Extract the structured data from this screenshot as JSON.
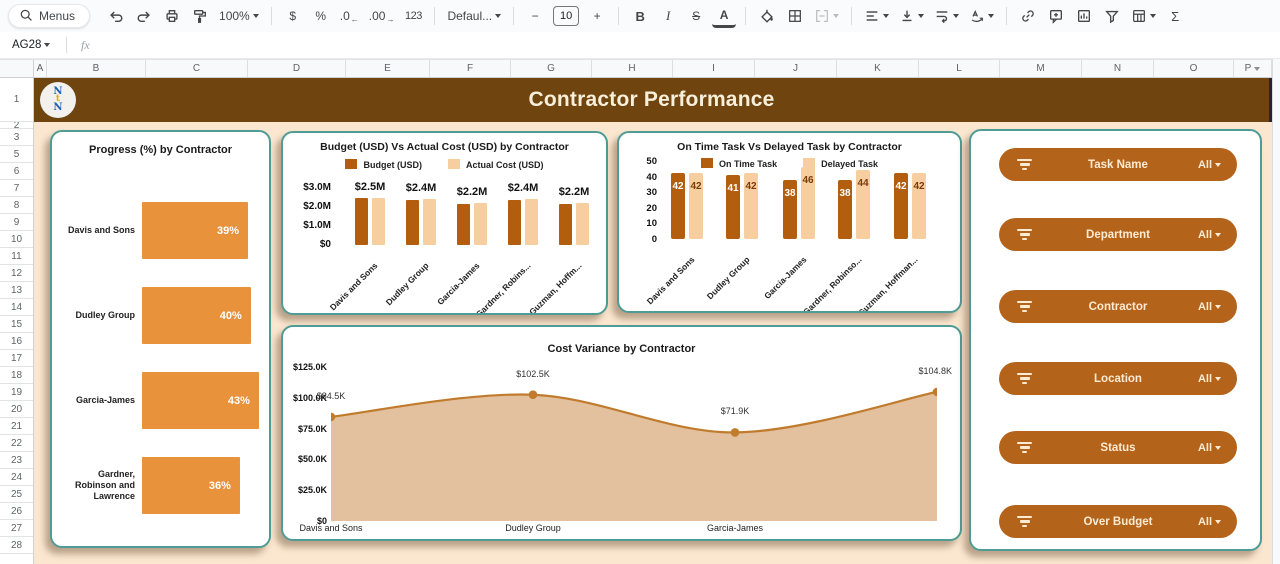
{
  "toolbar": {
    "menus": "Menus",
    "zoom_value": "100%",
    "currency": "$",
    "percent": "%",
    "dec_decrease": ".0",
    "dec_decrease_arrow": "←",
    "dec_increase": ".00",
    "dec_increase_arrow": "→",
    "more_formats": "123",
    "font_name": "Defaul...",
    "font_size": "10",
    "minus": "−",
    "plus": "+",
    "bold": "B",
    "italic": "I",
    "strike": "S",
    "text_color": "A",
    "sigma": "Σ"
  },
  "formula_bar": {
    "cell_ref": "AG28",
    "fx": "fx"
  },
  "grid": {
    "columns": [
      "A",
      "B",
      "C",
      "D",
      "E",
      "F",
      "G",
      "H",
      "I",
      "J",
      "K",
      "L",
      "M",
      "N",
      "O",
      "P"
    ],
    "rows": [
      "1",
      "2",
      "3",
      "5",
      "6",
      "7",
      "8",
      "9",
      "10",
      "11",
      "12",
      "13",
      "14",
      "15",
      "16",
      "17",
      "18",
      "19",
      "20",
      "21",
      "22",
      "23",
      "24",
      "25",
      "26",
      "27",
      "28"
    ]
  },
  "dashboard": {
    "title": "Contractor Performance",
    "logo": {
      "line1": "N",
      "line2": "t",
      "line3": "N"
    }
  },
  "colors": {
    "banner": "#6F440F",
    "dashboard_bg": "#FBE7D0",
    "card_border": "#4E9C95",
    "bar_orange": "#E8923C",
    "series_dark": "#B35E0F",
    "series_light": "#F6CE9F",
    "area_fill": "#E3C19E",
    "line": "#C07B2D",
    "button": "#B4631B",
    "banner_text": "#F7EFD9",
    "delayed_label": "#7a3c08"
  },
  "chart_data": [
    {
      "type": "bar",
      "orientation": "horizontal",
      "title": "Progress (%) by Contractor",
      "categories": [
        "Davis and Sons",
        "Dudley Group",
        "Garcia-James",
        "Gardner,\nRobinson and\nLawrence"
      ],
      "values": [
        39,
        40,
        43,
        36
      ],
      "value_labels": [
        "39%",
        "40%",
        "43%",
        "36%"
      ],
      "xlim": [
        0,
        45
      ],
      "grid": false
    },
    {
      "type": "bar",
      "title": "Budget (USD) Vs Actual Cost (USD) by Contractor",
      "categories": [
        "Davis and Sons",
        "Dudley Group",
        "Garcia-James",
        "Gardner, Robins...",
        "Guzman, Hoffm..."
      ],
      "series": [
        {
          "name": "Budget (USD)",
          "values": [
            2.45,
            2.35,
            2.15,
            2.35,
            2.15
          ]
        },
        {
          "name": "Actual Cost (USD)",
          "values": [
            2.5,
            2.4,
            2.2,
            2.4,
            2.2
          ]
        }
      ],
      "group_labels": [
        "$2.5M",
        "$2.4M",
        "$2.2M",
        "$2.4M",
        "$2.2M"
      ],
      "yticks": [
        "$3.0M",
        "$2.0M",
        "$1.0M",
        "$0"
      ],
      "ylim": [
        0,
        3
      ],
      "legend_position": "top",
      "grid": false
    },
    {
      "type": "bar",
      "title": "On Time Task Vs Delayed Task by Contractor",
      "categories": [
        "Davis and Sons",
        "Dudley Group",
        "Garcia-James",
        "Gardner, Robinso...",
        "Guzman, Hoffman..."
      ],
      "series": [
        {
          "name": "On Time Task",
          "values": [
            42,
            41,
            38,
            38,
            42
          ]
        },
        {
          "name": "Delayed Task",
          "values": [
            42,
            42,
            46,
            44,
            42
          ]
        }
      ],
      "yticks": [
        "50",
        "40",
        "30",
        "20",
        "10",
        "0"
      ],
      "ylim": [
        0,
        50
      ],
      "legend_position": "top",
      "grid": false
    },
    {
      "type": "area",
      "title": "Cost Variance by Contractor",
      "categories": [
        "Davis and Sons",
        "Dudley Group",
        "Garcia-James",
        ""
      ],
      "values": [
        84.5,
        102.5,
        71.9,
        104.8
      ],
      "value_labels": [
        "$84.5K",
        "$102.5K",
        "$71.9K",
        "$104.8K"
      ],
      "yticks": [
        "$125.0K",
        "$100.0K",
        "$75.0K",
        "$50.0K",
        "$25.0K",
        "$0"
      ],
      "ylim": [
        0,
        125
      ],
      "grid": false
    }
  ],
  "filters": {
    "items": [
      {
        "label": "Task Name",
        "value": "All"
      },
      {
        "label": "Department",
        "value": "All"
      },
      {
        "label": "Contractor",
        "value": "All"
      },
      {
        "label": "Location",
        "value": "All"
      },
      {
        "label": "Status",
        "value": "All"
      },
      {
        "label": "Over Budget",
        "value": "All"
      }
    ]
  }
}
